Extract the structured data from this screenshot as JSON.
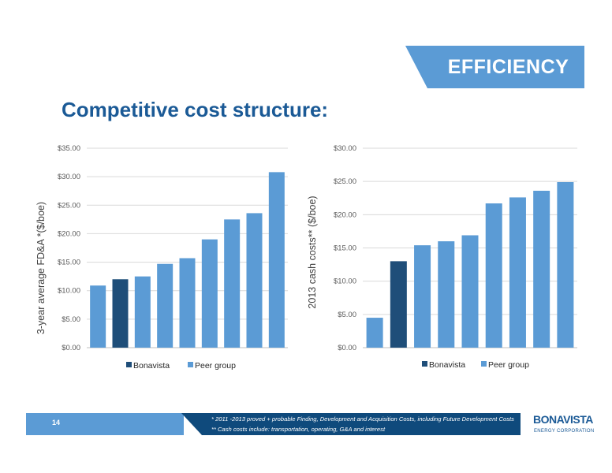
{
  "section_label": "EFFICIENCY",
  "title": "Competitive cost structure:",
  "page_number": "14",
  "footnotes": [
    "* 2011 -2013 proved + probable Finding, Development and Acquisition Costs, including Future Development Costs",
    "** Cash costs include: transportation, operating, G&A and interest"
  ],
  "logo": {
    "name": "BONAVISTA",
    "subtitle": "ENERGY CORPORATION"
  },
  "colors": {
    "accent": "#5b9bd5",
    "highlight": "#1f4e79",
    "navy": "#0f4a7c",
    "title": "#1b5a96"
  },
  "chart_data": [
    {
      "type": "bar",
      "ylabel": "3-year average  FD&A *($/boe)",
      "ylim": [
        0,
        35
      ],
      "yticks": [
        "$0.00",
        "$5.00",
        "$10.00",
        "$15.00",
        "$20.00",
        "$25.00",
        "$30.00",
        "$35.00"
      ],
      "values": [
        10.9,
        12.0,
        12.5,
        14.7,
        15.7,
        19.0,
        22.5,
        23.6,
        30.8
      ],
      "highlight_index": 1,
      "legend": [
        "Bonavista",
        "Peer group"
      ],
      "legend_position": "bottom",
      "grid": true
    },
    {
      "type": "bar",
      "ylabel": "2013 cash costs** ($/boe)",
      "ylim": [
        0,
        30
      ],
      "yticks": [
        "$0.00",
        "$5.00",
        "$10.00",
        "$15.00",
        "$20.00",
        "$25.00",
        "$30.00"
      ],
      "values": [
        4.5,
        13.0,
        15.4,
        16.0,
        16.9,
        21.7,
        22.6,
        23.6,
        24.9
      ],
      "highlight_index": 1,
      "legend": [
        "Bonavista",
        "Peer group"
      ],
      "legend_position": "bottom",
      "grid": true
    }
  ]
}
